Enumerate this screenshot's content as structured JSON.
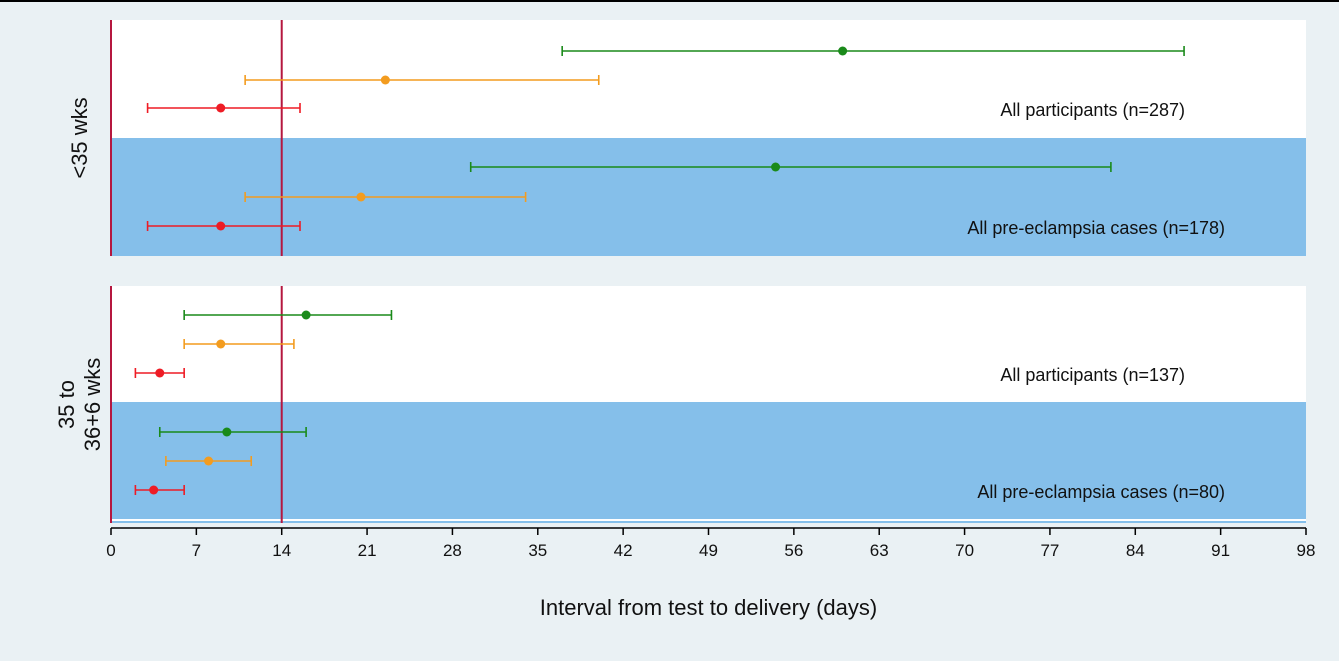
{
  "chart_data": {
    "type": "scatter",
    "title": "",
    "xlabel": "Interval from test to delivery (days)",
    "ylabel": "",
    "xlim": [
      0,
      98
    ],
    "xticks": [
      0,
      7,
      14,
      21,
      28,
      35,
      42,
      49,
      56,
      63,
      70,
      77,
      84,
      91,
      98
    ],
    "reference_lines_x": [
      0,
      14
    ],
    "colors": {
      "series": [
        "#1a8a1a",
        "#f39c1f",
        "#ee1c25"
      ],
      "band_fill": "#85bfea",
      "reference_line": "#b5173f",
      "background": "#eaf1f4"
    },
    "panels": [
      {
        "label": "<35 wks",
        "bands": [
          {
            "label": "All participants (n=287)",
            "shaded": false,
            "rows": [
              {
                "point": 60,
                "low": 37,
                "high": 88
              },
              {
                "point": 22.5,
                "low": 11,
                "high": 40
              },
              {
                "point": 9,
                "low": 3,
                "high": 15.5
              }
            ]
          },
          {
            "label": "All pre-eclampsia cases (n=178)",
            "shaded": true,
            "rows": [
              {
                "point": 54.5,
                "low": 29.5,
                "high": 82
              },
              {
                "point": 20.5,
                "low": 11,
                "high": 34
              },
              {
                "point": 9,
                "low": 3,
                "high": 15.5
              }
            ]
          }
        ]
      },
      {
        "label": "35 to\n36+6 wks",
        "label_lines": [
          "35 to",
          "36+6 wks"
        ],
        "bands": [
          {
            "label": "All participants (n=137)",
            "shaded": false,
            "rows": [
              {
                "point": 16,
                "low": 6,
                "high": 23
              },
              {
                "point": 9,
                "low": 6,
                "high": 15
              },
              {
                "point": 4,
                "low": 2,
                "high": 6
              }
            ]
          },
          {
            "label": "All pre-eclampsia cases (n=80)",
            "shaded": true,
            "rows": [
              {
                "point": 9.5,
                "low": 4,
                "high": 16
              },
              {
                "point": 8,
                "low": 4.5,
                "high": 11.5
              },
              {
                "point": 3.5,
                "low": 2,
                "high": 6
              }
            ]
          }
        ]
      }
    ]
  }
}
